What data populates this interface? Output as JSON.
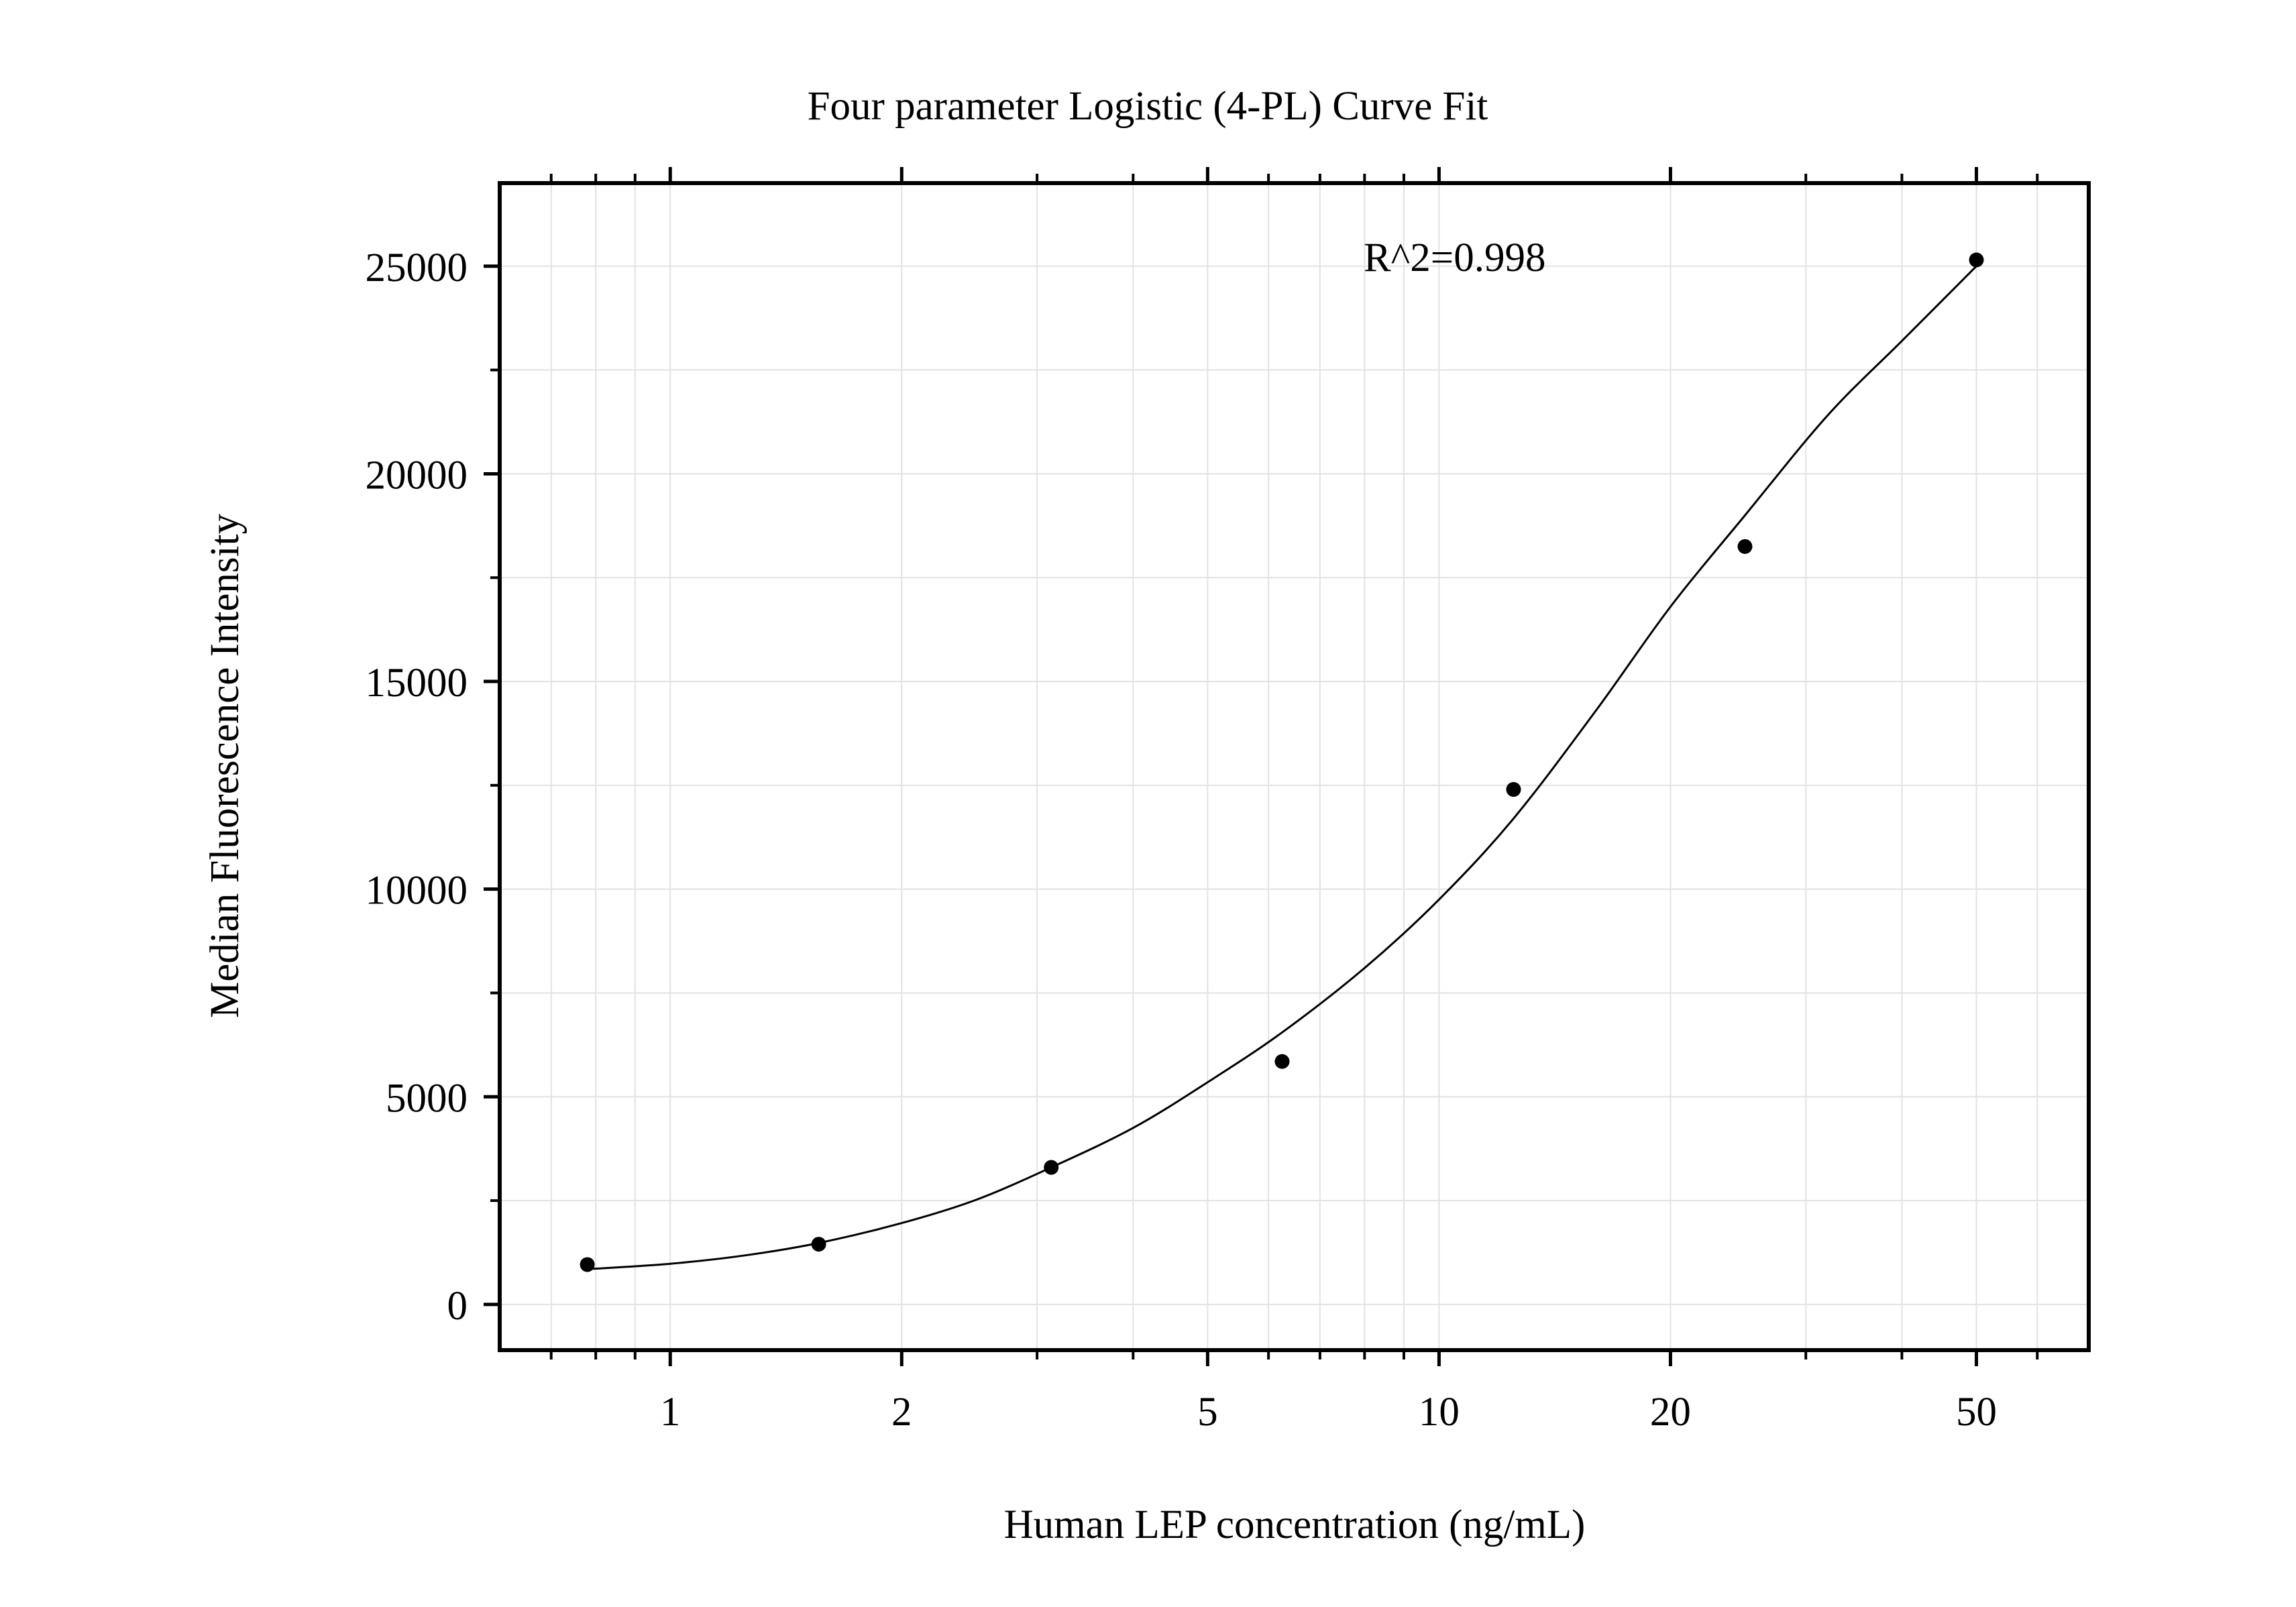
{
  "chart_data": {
    "type": "scatter",
    "title": "Four parameter Logistic (4-PL) Curve Fit",
    "xlabel": "Human LEP concentration (ng/mL)",
    "ylabel": "Median Fluorescence Intensity",
    "x_scale": "log",
    "xlim": [
      0.6,
      70
    ],
    "ylim": [
      -1100,
      27000
    ],
    "x_ticks": [
      1,
      2,
      5,
      10,
      20,
      50
    ],
    "x_tick_labels": [
      "1",
      "2",
      "5",
      "10",
      "20",
      "50"
    ],
    "x_minor_ticks": [
      0.7,
      0.8,
      0.9,
      3,
      4,
      6,
      7,
      8,
      9,
      30,
      40,
      60
    ],
    "y_ticks": [
      0,
      5000,
      10000,
      15000,
      20000,
      25000
    ],
    "y_tick_labels": [
      "0",
      "5000",
      "10000",
      "15000",
      "20000",
      "25000"
    ],
    "y_minor_ticks": [
      2500,
      7500,
      12500,
      17500,
      22500
    ],
    "grid": true,
    "annotation": "R^2=0.998",
    "series": [
      {
        "type": "scatter",
        "x": [
          0.78,
          1.56,
          3.13,
          6.25,
          12.5,
          25,
          50
        ],
        "y": [
          960,
          1450,
          3300,
          5850,
          12400,
          18250,
          25150
        ],
        "color": "#000000"
      },
      {
        "type": "line",
        "x": [
          0.78,
          1,
          1.25,
          1.56,
          2,
          2.5,
          3.13,
          4,
          5,
          6.25,
          8,
          10,
          12.5,
          16,
          20,
          25,
          32,
          40,
          50
        ],
        "y": [
          850,
          980,
          1180,
          1480,
          1960,
          2520,
          3300,
          4250,
          5350,
          6550,
          8100,
          9750,
          11700,
          14300,
          16800,
          19000,
          21400,
          23200,
          25000
        ],
        "color": "#000000"
      }
    ]
  }
}
